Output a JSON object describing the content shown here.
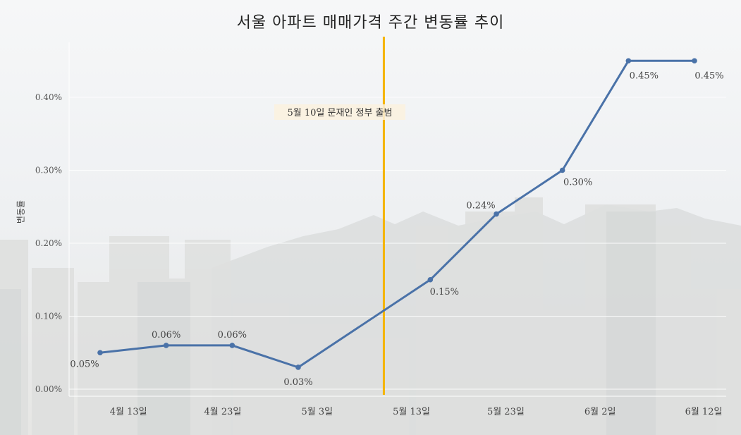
{
  "chart_data": {
    "type": "line",
    "title": "서울 아파트 매매가격 주간 변동률 추이",
    "ylabel": "변동률",
    "xlabel": "",
    "ylim": [
      0,
      0.48
    ],
    "y_ticks": [
      "0.00%",
      "0.10%",
      "0.20%",
      "0.30%",
      "0.40%"
    ],
    "x_ticks": [
      "4월 13일",
      "4월 23일",
      "5월 3일",
      "5월 13일",
      "5월 23일",
      "6월 2일",
      "6월 12일"
    ],
    "series": [
      {
        "color": "#4a72a8",
        "points": [
          {
            "x": "2017-04-10",
            "y": 0.05,
            "label": "0.05%"
          },
          {
            "x": "2017-04-17",
            "y": 0.06,
            "label": "0.06%"
          },
          {
            "x": "2017-04-24",
            "y": 0.06,
            "label": "0.06%"
          },
          {
            "x": "2017-05-01",
            "y": 0.03,
            "label": "0.03%"
          },
          {
            "x": "2017-05-15",
            "y": 0.15,
            "label": "0.15%"
          },
          {
            "x": "2017-05-22",
            "y": 0.24,
            "label": "0.24%"
          },
          {
            "x": "2017-05-29",
            "y": 0.3,
            "label": "0.30%"
          },
          {
            "x": "2017-06-05",
            "y": 0.45,
            "label": "0.45%"
          },
          {
            "x": "2017-06-12",
            "y": 0.45,
            "label": "0.45%"
          }
        ]
      }
    ],
    "annotation": {
      "text": "5월 10일 문재인 정부 출범",
      "x": "2017-05-10",
      "color": "#f5b400"
    },
    "grid": true
  },
  "colors": {
    "line": "#4a72a8",
    "event_line": "#f5b400"
  }
}
